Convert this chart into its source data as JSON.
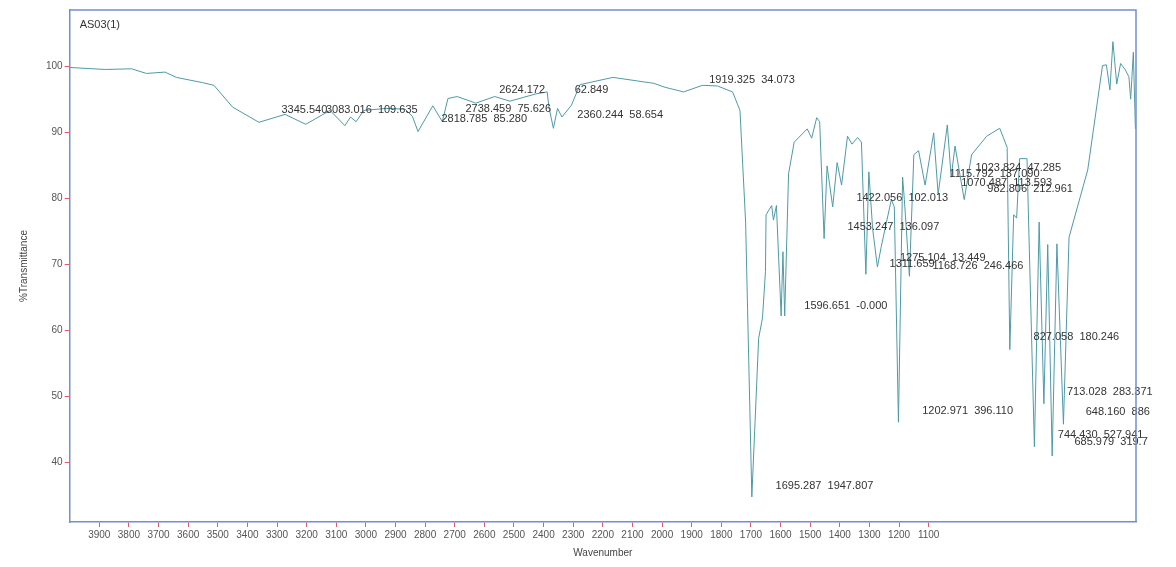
{
  "chart_data": {
    "type": "line",
    "title": "AS03(1)",
    "xlabel": "Wavenumber",
    "ylabel": "%Transmittance",
    "xlim": [
      4000,
      400
    ],
    "ylim": [
      31,
      108.5
    ],
    "xticks": [
      3900,
      3800,
      3700,
      3600,
      3500,
      3400,
      3300,
      3200,
      3100,
      3000,
      2900,
      2800,
      2700,
      2600,
      2500,
      2400,
      2300,
      2200,
      2100,
      2000,
      1900,
      1800,
      1700,
      1600,
      1500,
      1400,
      1300,
      1200,
      1100
    ],
    "yticks": [
      40,
      50,
      60,
      70,
      80,
      90,
      100
    ],
    "grid": false,
    "legend": false,
    "marker": "none",
    "line_style": "solid",
    "series": [
      {
        "color": "#4f9aa8",
        "x": [
          4000,
          3880,
          3791,
          3741,
          3678,
          3640,
          3551,
          3513,
          3450,
          3361,
          3273,
          3203,
          3121,
          3071,
          3052,
          3033,
          3007,
          2932,
          2868,
          2843,
          2824,
          2774,
          2742,
          2723,
          2692,
          2629,
          2565,
          2514,
          2426,
          2388,
          2382,
          2367,
          2353,
          2338,
          2306,
          2277,
          2166,
          2028,
          1990,
          1927,
          1864,
          1813,
          1762,
          1737,
          1718,
          1697,
          1674,
          1661,
          1651,
          1649,
          1630,
          1624,
          1614,
          1598,
          1592,
          1586,
          1573,
          1554,
          1510,
          1495,
          1478,
          1468,
          1453,
          1443,
          1424,
          1409,
          1394,
          1374,
          1359,
          1340,
          1327,
          1312,
          1302,
          1289,
          1273,
          1260,
          1226,
          1216,
          1202,
          1188,
          1182,
          1165,
          1150,
          1134,
          1112,
          1083,
          1068,
          1037,
          1024,
          1011,
          980,
          955,
          904,
          860,
          835,
          826,
          813,
          803,
          793,
          768,
          743,
          727,
          711,
          698,
          683,
          667,
          645,
          626,
          563,
          513,
          500,
          488,
          478,
          465,
          452,
          437,
          424,
          418,
          409,
          402
        ],
        "values": [
          99.8,
          99.5,
          99.6,
          98.9,
          99.1,
          98.3,
          97.5,
          97.1,
          93.8,
          91.5,
          92.7,
          91.2,
          93.3,
          91.0,
          92.3,
          91.6,
          93.3,
          93.6,
          93.5,
          92.4,
          90.1,
          94.0,
          91.6,
          95.1,
          95.4,
          94.4,
          95.4,
          94.7,
          95.8,
          96.1,
          93.8,
          90.6,
          93.6,
          92.3,
          94.1,
          97.2,
          98.3,
          97.4,
          96.8,
          96.1,
          97.1,
          97.0,
          96.1,
          93.3,
          76.4,
          34.8,
          58.8,
          61.9,
          68.9,
          77.5,
          78.9,
          76.7,
          78.9,
          62.2,
          71.9,
          62.2,
          83.7,
          88.5,
          90.5,
          89.1,
          92.2,
          91.6,
          73.9,
          84.9,
          78.7,
          85.4,
          82.0,
          89.4,
          88.2,
          89.2,
          88.5,
          68.5,
          84.0,
          75.3,
          69.6,
          72.7,
          79.8,
          78.7,
          46.1,
          83.2,
          79.8,
          68.2,
          86.6,
          87.2,
          82.0,
          89.9,
          80.6,
          91.1,
          83.2,
          87.9,
          79.8,
          86.6,
          89.4,
          90.6,
          87.7,
          57.1,
          77.5,
          77.0,
          86.0,
          86.0,
          42.4,
          76.4,
          48.9,
          73.0,
          41.0,
          73.1,
          45.8,
          74.1,
          84.3,
          100.1,
          100.2,
          96.4,
          103.7,
          97.3,
          100.4,
          99.5,
          98.4,
          95.0,
          102.1,
          90.5
        ]
      }
    ],
    "annotations": [
      "3345.540",
      "3083.016  109.635",
      "2818.785  85.280",
      "2738.459  75.626",
      "2624.172",
      "62.849",
      "2360.244  58.654",
      "1919.325  34.073",
      "1023.824  47.285",
      "1115.792  137.090",
      "1070.487  113.593",
      "982.806  212.961",
      "1422.056  102.013",
      "1453.247  136.097",
      "1275.104  13.449",
      "1311.659",
      "1168.726  246.466",
      "1596.651  -0.000",
      "827.058  180.246",
      "713.028  283.371",
      "648.160  886",
      "1202.971  396.110",
      "744.430  527.941",
      "685.979  319.7",
      "1695.287  1947.807"
    ]
  }
}
